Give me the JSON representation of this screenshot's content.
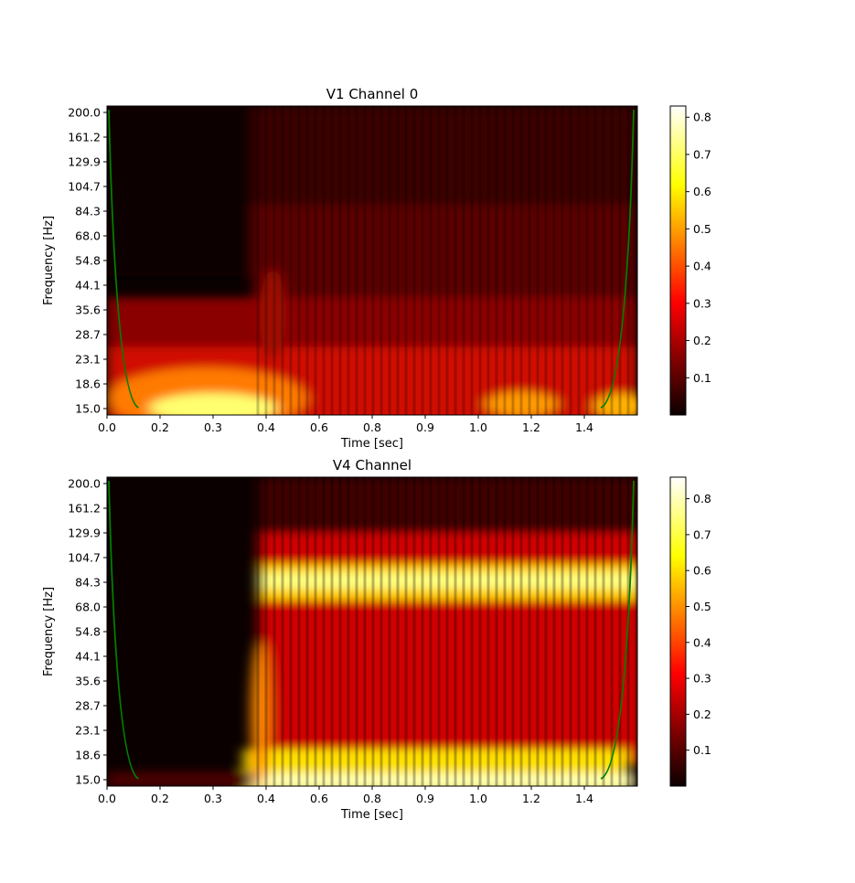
{
  "chart_data": [
    {
      "type": "heatmap",
      "title": "V1 Channel 0",
      "xlabel": "Time [sec]",
      "ylabel": "Frequency [Hz]",
      "xlim": [
        0.0,
        1.6
      ],
      "x_ticks": [
        "0.0",
        "0.2",
        "0.3",
        "0.4",
        "0.6",
        "0.8",
        "0.9",
        "1.0",
        "1.2",
        "1.4"
      ],
      "y_ticks": [
        "15.0",
        "18.6",
        "23.1",
        "28.7",
        "35.6",
        "44.1",
        "54.8",
        "68.0",
        "84.3",
        "104.7",
        "129.9",
        "161.2",
        "200.0"
      ],
      "colorbar": {
        "cmap": "hot",
        "min": 0.0,
        "max": 0.83,
        "ticks": [
          "0.1",
          "0.2",
          "0.3",
          "0.4",
          "0.5",
          "0.6",
          "0.7",
          "0.8"
        ]
      },
      "cone_of_influence_color": "#008000",
      "regions": [
        {
          "t_start": 0.0,
          "t_end": 0.53,
          "level": "low baseline, brighter near 15-25 Hz (peak ~0.8 around 0.3-0.45 s)"
        },
        {
          "t_start": 0.53,
          "t_end": 1.6,
          "level": "moderate ~0.2-0.3 across 15-120 Hz, ~0.4 near 15-20 Hz"
        }
      ]
    },
    {
      "type": "heatmap",
      "title": "V4 Channel",
      "xlabel": "Time [sec]",
      "ylabel": "Frequency [Hz]",
      "xlim": [
        0.0,
        1.6
      ],
      "x_ticks": [
        "0.0",
        "0.2",
        "0.3",
        "0.4",
        "0.6",
        "0.8",
        "0.9",
        "1.0",
        "1.2",
        "1.4"
      ],
      "y_ticks": [
        "15.0",
        "18.6",
        "23.1",
        "28.7",
        "35.6",
        "44.1",
        "54.8",
        "68.0",
        "84.3",
        "104.7",
        "129.9",
        "161.2",
        "200.0"
      ],
      "colorbar": {
        "cmap": "hot",
        "min": 0.0,
        "max": 0.86,
        "ticks": [
          "0.1",
          "0.2",
          "0.3",
          "0.4",
          "0.5",
          "0.6",
          "0.7",
          "0.8"
        ]
      },
      "cone_of_influence_color": "#008000",
      "regions": [
        {
          "t_start": 0.0,
          "t_end": 0.53,
          "level": "near zero"
        },
        {
          "t_start": 0.53,
          "t_end": 1.6,
          "level": "~0.7 band at 68-100 Hz, ~0.8 at 15-18 Hz, ~0.35 elsewhere"
        }
      ]
    }
  ]
}
